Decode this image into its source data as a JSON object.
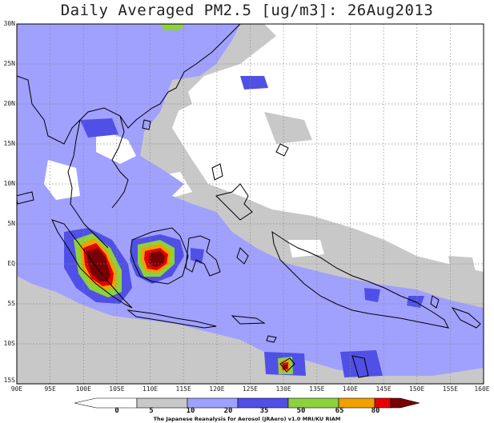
{
  "title": "Daily Averaged PM2.5 [ug/m3]: 26Aug2013",
  "credit": "The Japanese Reanalysis for Aerosol (JRAero) v1.0 MRI/KU RIAM",
  "map": {
    "lon_range": [
      90,
      160
    ],
    "lat_range": [
      -15,
      30
    ],
    "lat_ticks": [
      "30N",
      "25N",
      "20N",
      "15N",
      "10N",
      "5N",
      "EQ",
      "5S",
      "10S",
      "15S"
    ],
    "lon_ticks": [
      "90E",
      "95E",
      "100E",
      "105E",
      "110E",
      "115E",
      "120E",
      "125E",
      "130E",
      "135E",
      "140E",
      "145E",
      "150E",
      "155E",
      "160E"
    ],
    "gridlines": true
  },
  "colorbar": {
    "levels": [
      "0",
      "5",
      "10",
      "20",
      "35",
      "50",
      "65",
      "80"
    ],
    "colors": [
      "#ffffff",
      "#c8c8c8",
      "#a0a0ff",
      "#5050e6",
      "#8cd23c",
      "#f0a000",
      "#e60000",
      "#780000"
    ]
  }
}
